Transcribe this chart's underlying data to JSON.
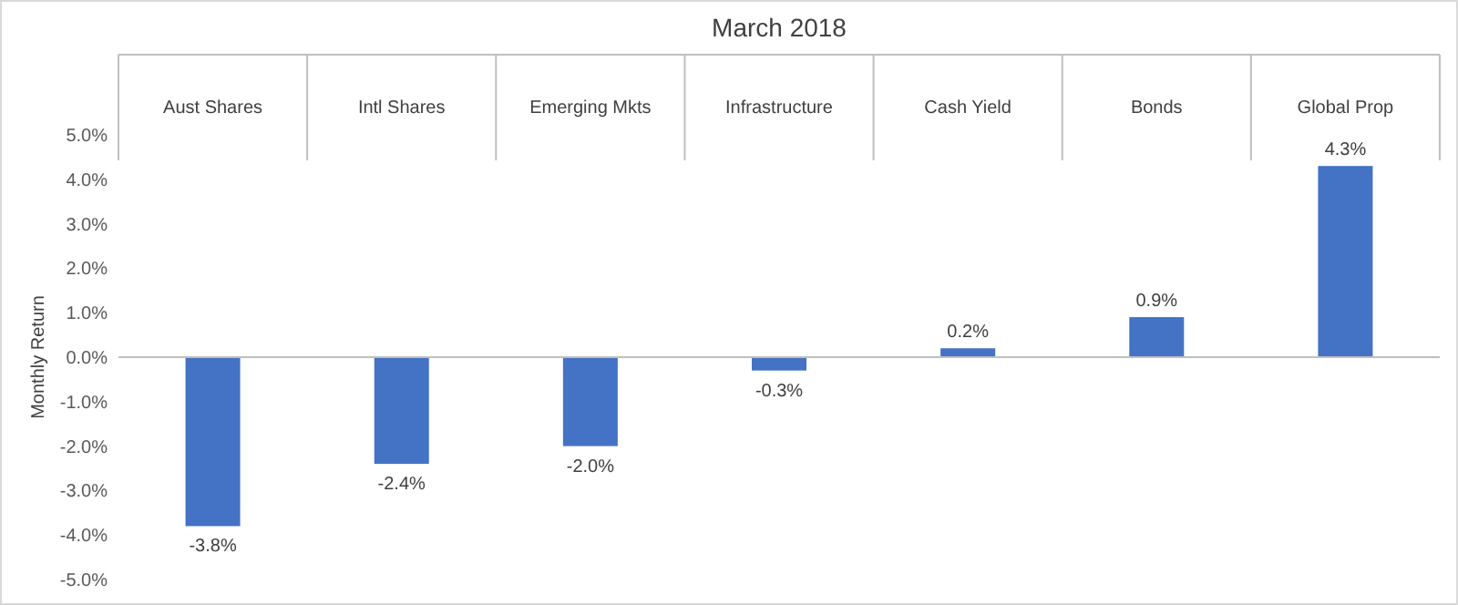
{
  "chart_data": {
    "type": "bar",
    "title": "March 2018",
    "ylabel": "Monthly Return",
    "categories": [
      "Aust Shares",
      "Intl Shares",
      "Emerging Mkts",
      "Infrastructure",
      "Cash Yield",
      "Bonds",
      "Global Prop"
    ],
    "values": [
      -3.8,
      -2.4,
      -2.0,
      -0.3,
      0.2,
      0.9,
      4.3
    ],
    "value_labels": [
      "-3.8%",
      "-2.4%",
      "-2.0%",
      "-0.3%",
      "0.2%",
      "0.9%",
      "4.3%"
    ],
    "color": "#4472c4",
    "ylim": [
      -5,
      5
    ],
    "yticks": [
      {
        "value": -5,
        "label": "-5.0%"
      },
      {
        "value": -4,
        "label": "-4.0%"
      },
      {
        "value": -3,
        "label": "-3.0%"
      },
      {
        "value": -2,
        "label": "-2.0%"
      },
      {
        "value": -1,
        "label": "-1.0%"
      },
      {
        "value": 0,
        "label": "0.0%"
      },
      {
        "value": 1,
        "label": "1.0%"
      },
      {
        "value": 2,
        "label": "2.0%"
      },
      {
        "value": 3,
        "label": "3.0%"
      },
      {
        "value": 4,
        "label": "4.0%"
      },
      {
        "value": 5,
        "label": "5.0%"
      }
    ]
  }
}
